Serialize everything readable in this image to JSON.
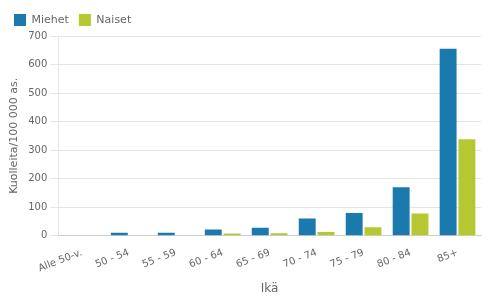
{
  "chart_data": {
    "type": "bar",
    "categories": [
      "Alle 50-v.",
      "50 - 54",
      "55 - 59",
      "60 - 64",
      "65 - 69",
      "70 - 74",
      "75 - 79",
      "80 - 84",
      "85+"
    ],
    "series": [
      {
        "name": "Miehet",
        "color": "#1a7aad",
        "values": [
          0,
          10,
          10,
          22,
          28,
          60,
          80,
          170,
          655
        ]
      },
      {
        "name": "Naiset",
        "color": "#b5c832",
        "values": [
          0,
          0,
          0,
          8,
          9,
          13,
          30,
          78,
          338
        ]
      }
    ],
    "xlabel": "Ikä",
    "ylabel": "Kuolleita/100 000 as.",
    "ylim": [
      0,
      700
    ],
    "yticks": [
      0,
      100,
      200,
      300,
      400,
      500,
      600,
      700
    ],
    "grid": true,
    "legend": "upper left"
  }
}
